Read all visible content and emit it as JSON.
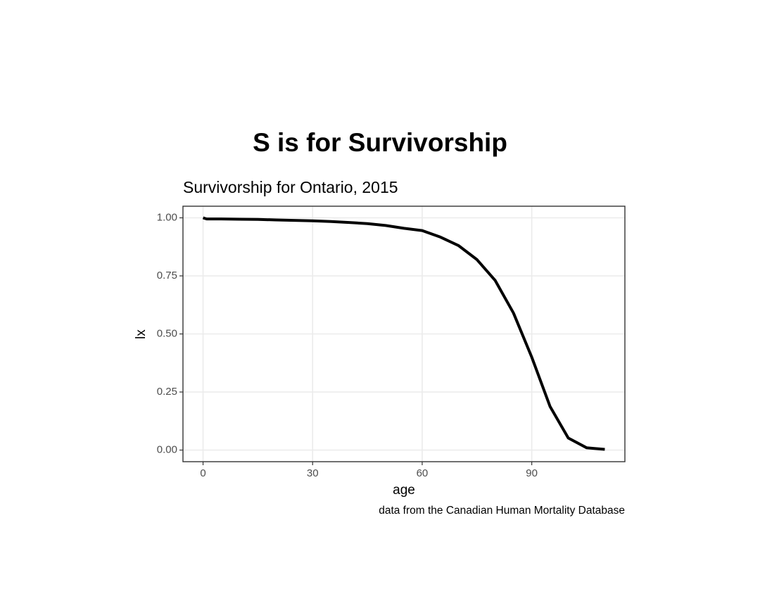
{
  "chart_data": {
    "type": "line",
    "title": "S is for Survivorship",
    "subtitle": "Survivorship for Ontario, 2015",
    "x_label": "age",
    "y_label": "lx",
    "caption": "data from the Canadian Human Mortality Database",
    "x": [
      0,
      1,
      5,
      10,
      15,
      20,
      25,
      30,
      35,
      40,
      45,
      50,
      55,
      60,
      65,
      70,
      75,
      80,
      85,
      90,
      95,
      100,
      105,
      110
    ],
    "values": [
      1.0,
      0.995,
      0.995,
      0.994,
      0.993,
      0.991,
      0.989,
      0.987,
      0.984,
      0.98,
      0.975,
      0.967,
      0.955,
      0.945,
      0.917,
      0.88,
      0.82,
      0.73,
      0.59,
      0.4,
      0.188,
      0.052,
      0.01,
      0.003
    ],
    "color": "#000000",
    "xlim": [
      -5.5,
      115.5
    ],
    "ylim": [
      -0.05,
      1.05
    ],
    "xticks": [
      0,
      30,
      60,
      90
    ],
    "yticks": [
      {
        "value": 0,
        "label": "0.00"
      },
      {
        "value": 0.25,
        "label": "0.25"
      },
      {
        "value": 0.5,
        "label": "0.50"
      },
      {
        "value": 0.75,
        "label": "0.75"
      },
      {
        "value": 1,
        "label": "1.00"
      }
    ],
    "grid": true
  }
}
